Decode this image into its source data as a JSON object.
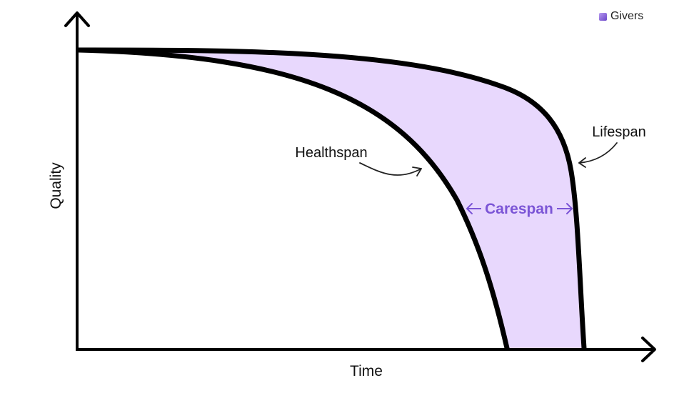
{
  "brand": {
    "name": "Givers",
    "icon": "givers-logo-icon",
    "color": "#7b55d6"
  },
  "axes": {
    "x_label": "Time",
    "y_label": "Quality"
  },
  "curves": {
    "healthspan": {
      "label": "Healthspan"
    },
    "lifespan": {
      "label": "Lifespan"
    }
  },
  "region": {
    "label": "Carespan",
    "fill": "#e8d8fd",
    "label_color": "#7b55d6"
  },
  "colors": {
    "stroke": "#000000",
    "annotation": "#222222"
  }
}
